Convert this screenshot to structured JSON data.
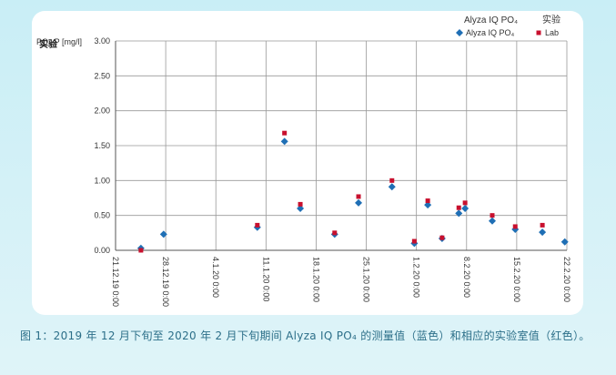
{
  "chart_data": {
    "type": "scatter",
    "y_label": "PO₄-P [mg/l]",
    "annotation": "实验",
    "legend_titles": [
      "Alyza IQ PO₄",
      "实验"
    ],
    "xlim": [
      "21.12.19 0:00",
      "22.2.20 0:00"
    ],
    "xticks": [
      "21.12.19 0:00",
      "28.12.19 0:00",
      "4.1.20 0:00",
      "11.1.20 0:00",
      "18.1.20 0:00",
      "25.1.20 0:00",
      "1.2.20 0:00",
      "8.2.20 0:00",
      "15.2.20 0:00",
      "22.2.20 0:00"
    ],
    "ylim": [
      0,
      3
    ],
    "yticks": [
      {
        "value": 0,
        "label": "0.00"
      },
      {
        "value": 0.5,
        "label": "0.50"
      },
      {
        "value": 1,
        "label": "1.00"
      },
      {
        "value": 1.5,
        "label": "1.50"
      },
      {
        "value": 2,
        "label": "2.00"
      },
      {
        "value": 2.5,
        "label": "2.50"
      },
      {
        "value": 3,
        "label": "3.00"
      }
    ],
    "grid": true,
    "series": [
      {
        "name": "Alyza IQ PO₄",
        "color": "#1f6fb5",
        "marker": "diamond",
        "x": [
          "24.12.19 13:00",
          "27.12.19 17:00",
          "9.1.20 19:00",
          "13.1.20 14:00",
          "15.1.20 19:00",
          "20.1.20 14:00",
          "23.1.20 22:00",
          "28.1.20 14:00",
          "31.1.20 17:00",
          "2.2.20 14:00",
          "4.2.20 14:00",
          "6.2.20 22:00",
          "7.2.20 19:00",
          "11.2.20 14:00",
          "14.2.20 19:00",
          "18.2.20 14:00",
          "21.2.20 17:00"
        ],
        "values": [
          0.03,
          0.23,
          0.33,
          1.56,
          0.6,
          0.23,
          0.68,
          0.91,
          0.1,
          0.65,
          0.17,
          0.53,
          0.6,
          0.42,
          0.3,
          0.26,
          0.12
        ]
      },
      {
        "name": "Lab",
        "color": "#c8102e",
        "marker": "square",
        "x": [
          "24.12.19 13:00",
          "9.1.20 19:00",
          "13.1.20 14:00",
          "15.1.20 19:00",
          "20.1.20 14:00",
          "23.1.20 22:00",
          "28.1.20 14:00",
          "31.1.20 17:00",
          "2.2.20 14:00",
          "4.2.20 14:00",
          "6.2.20 22:00",
          "7.2.20 19:00",
          "11.2.20 14:00",
          "14.2.20 19:00",
          "18.2.20 14:00"
        ],
        "values": [
          0,
          0.36,
          1.68,
          0.66,
          0.25,
          0.77,
          1,
          0.13,
          0.71,
          0.18,
          0.61,
          0.68,
          0.5,
          0.34,
          0.36
        ]
      }
    ]
  },
  "caption": "图 1：2019 年 12 月下旬至 2020 年 2 月下旬期间 Alyza IQ PO₄ 的测量值（蓝色）和相应的实验室值（红色）。"
}
